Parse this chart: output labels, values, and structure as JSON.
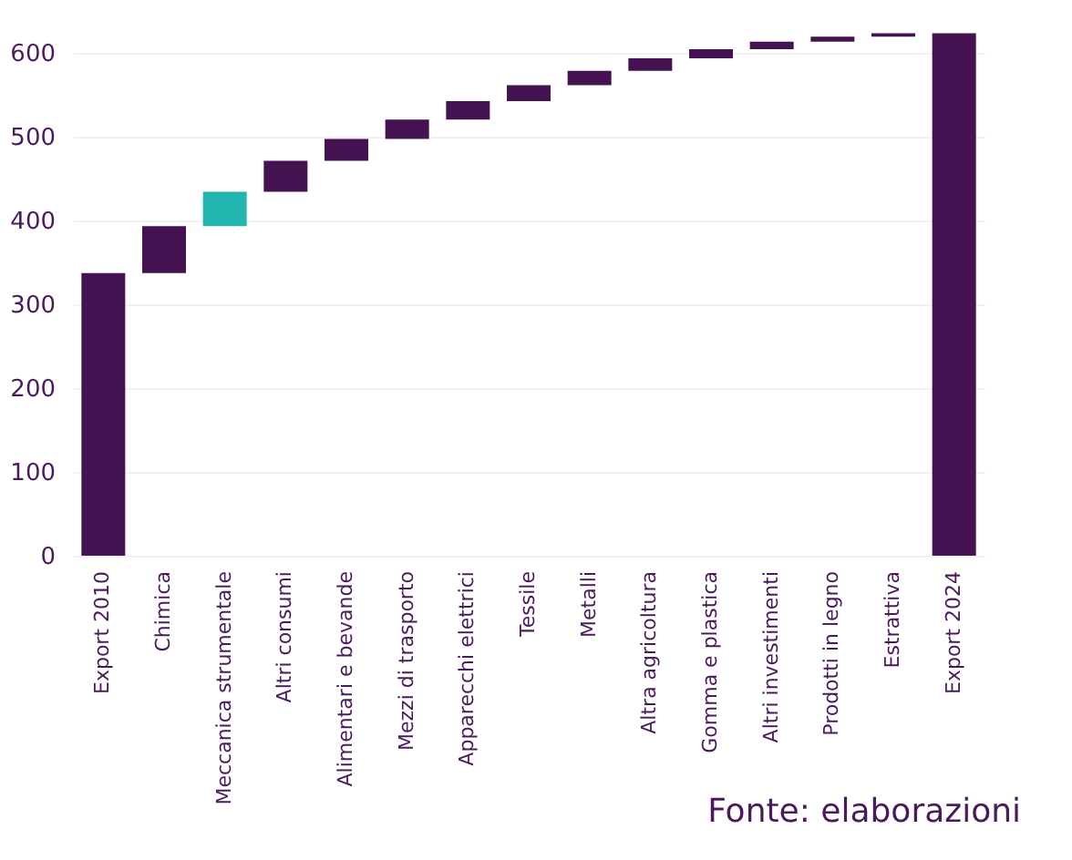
{
  "chart_data": {
    "type": "bar",
    "categories": [
      "Export 2010",
      "Chimica",
      "Meccanica strumentale",
      "Altri consumi",
      "Alimentari e bevande",
      "Mezzi di trasporto",
      "Apparecchi elettrici",
      "Tessile",
      "Metalli",
      "Altra agricoltura",
      "Gomma e plastica",
      "Altri investimenti",
      "Prodotti in legno",
      "Estrattiva",
      "Export 2024"
    ],
    "values": [
      337,
      56,
      41,
      37,
      26,
      23,
      22,
      19,
      17,
      15,
      11,
      9,
      6,
      4,
      623
    ],
    "base": [
      0,
      337,
      393,
      434,
      471,
      497,
      520,
      542,
      561,
      578,
      593,
      604,
      613,
      619,
      0
    ],
    "colors": [
      "#441251",
      "#441251",
      "#23b5b0",
      "#441251",
      "#441251",
      "#441251",
      "#441251",
      "#441251",
      "#441251",
      "#441251",
      "#441251",
      "#441251",
      "#441251",
      "#441251",
      "#441251"
    ],
    "ylim": [
      0,
      630
    ],
    "yticks": [
      0,
      100,
      200,
      300,
      400,
      500,
      600
    ],
    "grid": "y",
    "annotations": [
      "Fonte: elaborazioni"
    ]
  }
}
